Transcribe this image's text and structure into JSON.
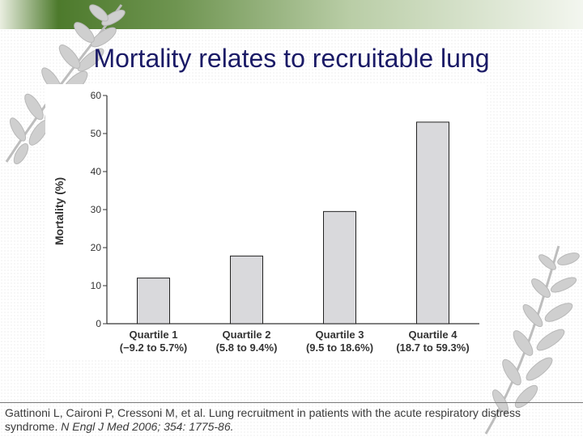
{
  "slide": {
    "title": "Mortality relates to recruitable lung",
    "citation_main": "Gattinoni L, Caironi P, Cressoni M, et al. Lung recruitment in patients with the acute respiratory distress syndrome.",
    "citation_journal": "N Engl J Med 2006; 354: 1775-86."
  },
  "colors": {
    "bar_fill": "#d9d9dc",
    "bar_stroke": "#222222",
    "title": "#1a1a66",
    "fern": "#c9c9c9",
    "band_green": "#4d7a2c"
  },
  "chart_data": {
    "type": "bar",
    "categories": [
      "Quartile 1",
      "Quartile 2",
      "Quartile 3",
      "Quartile 4"
    ],
    "category_sublabels": [
      "(−9.2 to 5.7%)",
      "(5.8 to 9.4%)",
      "(9.5 to 18.6%)",
      "(18.7 to 59.3%)"
    ],
    "values": [
      12,
      17.8,
      29.5,
      53
    ],
    "xlabel": "",
    "ylabel": "Mortality (%)",
    "ylim": [
      0,
      60
    ],
    "yticks": [
      "0",
      "10",
      "20",
      "30",
      "40",
      "50",
      "60"
    ],
    "grid": false,
    "legend": "none"
  }
}
